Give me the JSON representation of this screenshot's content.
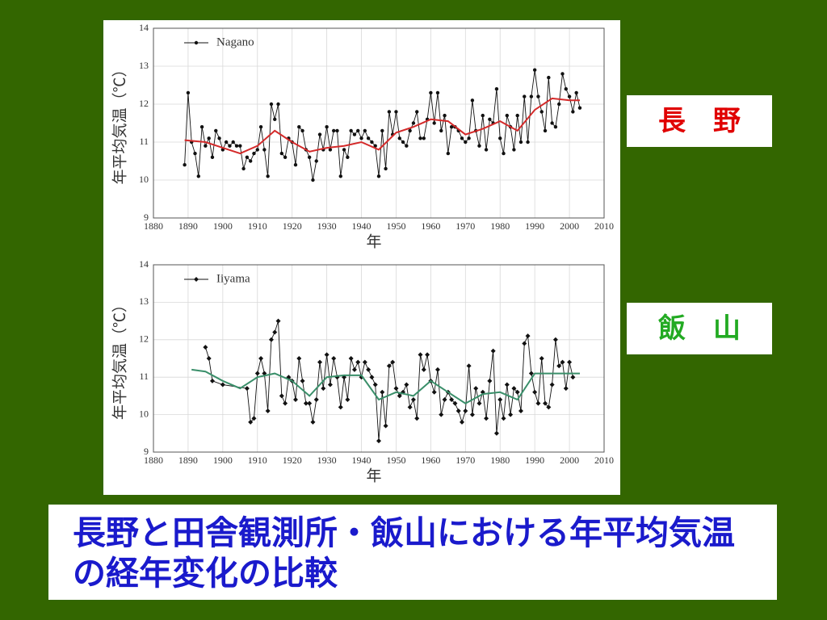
{
  "chart_data": [
    {
      "type": "line",
      "ylabel": "年平均気温（℃）",
      "xlabel": "年",
      "xlim": [
        1880,
        2010
      ],
      "ylim": [
        9,
        14
      ],
      "xticks": [
        1880,
        1890,
        1900,
        1910,
        1920,
        1930,
        1940,
        1950,
        1960,
        1970,
        1980,
        1990,
        2000,
        2010
      ],
      "yticks": [
        9,
        10,
        11,
        12,
        13,
        14
      ],
      "grid": true,
      "legend": "top-left",
      "series": [
        {
          "name": "Nagano",
          "color": "#111111",
          "marker": "circle",
          "x": [
            1889,
            1890,
            1891,
            1892,
            1893,
            1894,
            1895,
            1896,
            1897,
            1898,
            1899,
            1900,
            1901,
            1902,
            1903,
            1904,
            1905,
            1906,
            1907,
            1908,
            1909,
            1910,
            1911,
            1912,
            1913,
            1914,
            1915,
            1916,
            1917,
            1918,
            1919,
            1920,
            1921,
            1922,
            1923,
            1924,
            1925,
            1926,
            1927,
            1928,
            1929,
            1930,
            1931,
            1932,
            1933,
            1934,
            1935,
            1936,
            1937,
            1938,
            1939,
            1940,
            1941,
            1942,
            1943,
            1944,
            1945,
            1946,
            1947,
            1948,
            1949,
            1950,
            1951,
            1952,
            1953,
            1954,
            1955,
            1956,
            1957,
            1958,
            1959,
            1960,
            1961,
            1962,
            1963,
            1964,
            1965,
            1966,
            1967,
            1968,
            1969,
            1970,
            1971,
            1972,
            1973,
            1974,
            1975,
            1976,
            1977,
            1978,
            1979,
            1980,
            1981,
            1982,
            1983,
            1984,
            1985,
            1986,
            1987,
            1988,
            1989,
            1990,
            1991,
            1992,
            1993,
            1994,
            1995,
            1996,
            1997,
            1998,
            1999,
            2000,
            2001,
            2002,
            2003
          ],
          "values": [
            10.4,
            12.3,
            11.0,
            10.7,
            10.1,
            11.4,
            10.9,
            11.1,
            10.6,
            11.3,
            11.1,
            10.8,
            11.0,
            10.9,
            11.0,
            10.9,
            10.9,
            10.3,
            10.6,
            10.5,
            10.7,
            10.8,
            11.4,
            10.8,
            10.1,
            12.0,
            11.6,
            12.0,
            10.7,
            10.6,
            11.1,
            11.0,
            10.4,
            11.4,
            11.3,
            10.8,
            10.6,
            10.0,
            10.5,
            11.2,
            10.8,
            11.4,
            10.8,
            11.3,
            11.3,
            10.1,
            10.8,
            10.6,
            11.3,
            11.2,
            11.3,
            11.1,
            11.3,
            11.1,
            11.0,
            10.9,
            10.1,
            11.3,
            10.3,
            11.8,
            11.2,
            11.8,
            11.1,
            11.0,
            10.9,
            11.3,
            11.5,
            11.8,
            11.1,
            11.1,
            11.6,
            12.3,
            11.5,
            12.3,
            11.3,
            11.7,
            10.7,
            11.4,
            11.4,
            11.3,
            11.1,
            11.0,
            11.1,
            12.1,
            11.3,
            10.9,
            11.7,
            10.8,
            11.6,
            11.5,
            12.4,
            11.1,
            10.7,
            11.7,
            11.4,
            10.8,
            11.7,
            11.0,
            12.2,
            11.0,
            12.2,
            12.9,
            12.2,
            11.8,
            11.3,
            12.7,
            11.5,
            11.4,
            12.0,
            12.8,
            12.4,
            12.2,
            11.8,
            12.3,
            11.9
          ]
        },
        {
          "color": "#d42a2a",
          "x": [
            1889,
            1895,
            1900,
            1905,
            1910,
            1915,
            1920,
            1925,
            1930,
            1935,
            1940,
            1945,
            1950,
            1955,
            1960,
            1965,
            1970,
            1975,
            1980,
            1985,
            1990,
            1995,
            2000,
            2003
          ],
          "values": [
            11.05,
            11.0,
            10.85,
            10.7,
            10.9,
            11.3,
            11.0,
            10.75,
            10.85,
            10.9,
            11.0,
            10.8,
            11.25,
            11.4,
            11.6,
            11.55,
            11.2,
            11.35,
            11.55,
            11.3,
            11.85,
            12.15,
            12.1,
            12.1
          ]
        }
      ]
    },
    {
      "type": "line",
      "ylabel": "年平均気温（℃）",
      "xlabel": "年",
      "xlim": [
        1880,
        2010
      ],
      "ylim": [
        9,
        14
      ],
      "xticks": [
        1880,
        1890,
        1900,
        1910,
        1920,
        1930,
        1940,
        1950,
        1960,
        1970,
        1980,
        1990,
        2000,
        2010
      ],
      "yticks": [
        9,
        10,
        11,
        12,
        13,
        14
      ],
      "grid": true,
      "legend": "top-left",
      "series": [
        {
          "name": "Iiyama",
          "color": "#111111",
          "marker": "diamond",
          "x": [
            1895,
            1896,
            1897,
            1900,
            1907,
            1908,
            1909,
            1910,
            1911,
            1912,
            1913,
            1914,
            1915,
            1916,
            1917,
            1918,
            1919,
            1920,
            1921,
            1922,
            1923,
            1924,
            1925,
            1926,
            1927,
            1928,
            1929,
            1930,
            1931,
            1932,
            1933,
            1934,
            1935,
            1936,
            1937,
            1938,
            1939,
            1940,
            1941,
            1942,
            1943,
            1944,
            1945,
            1946,
            1947,
            1948,
            1949,
            1950,
            1951,
            1952,
            1953,
            1954,
            1955,
            1956,
            1957,
            1958,
            1959,
            1960,
            1961,
            1962,
            1963,
            1964,
            1965,
            1966,
            1967,
            1968,
            1969,
            1970,
            1971,
            1972,
            1973,
            1974,
            1975,
            1976,
            1977,
            1978,
            1979,
            1980,
            1981,
            1982,
            1983,
            1984,
            1985,
            1986,
            1987,
            1988,
            1989,
            1990,
            1991,
            1992,
            1993,
            1994,
            1995,
            1996,
            1997,
            1998,
            1999,
            2000,
            2001
          ],
          "values": [
            11.8,
            11.5,
            10.9,
            10.8,
            10.7,
            9.8,
            9.9,
            11.1,
            11.5,
            11.1,
            10.1,
            12.0,
            12.2,
            12.5,
            10.5,
            10.3,
            11.0,
            10.9,
            10.4,
            11.5,
            10.9,
            10.3,
            10.3,
            9.8,
            10.4,
            11.4,
            10.7,
            11.6,
            10.8,
            11.5,
            11.0,
            10.2,
            11.0,
            10.4,
            11.5,
            11.2,
            11.4,
            11.0,
            11.4,
            11.2,
            11.0,
            10.8,
            9.3,
            10.6,
            9.7,
            11.3,
            11.4,
            10.7,
            10.5,
            10.6,
            10.8,
            10.2,
            10.4,
            9.9,
            11.6,
            11.2,
            11.6,
            10.9,
            10.6,
            11.2,
            10.0,
            10.4,
            10.6,
            10.4,
            10.3,
            10.1,
            9.8,
            10.1,
            11.3,
            10.0,
            10.7,
            10.3,
            10.6,
            9.9,
            10.9,
            11.7,
            9.5,
            10.4,
            9.9,
            10.8,
            10.0,
            10.7,
            10.6,
            10.1,
            11.9,
            12.1,
            11.1,
            10.6,
            10.3,
            11.5,
            10.3,
            10.2,
            10.8,
            12.0,
            11.3,
            11.4,
            10.7,
            11.4,
            11.0
          ]
        },
        {
          "color": "#3a8f6a",
          "x": [
            1891,
            1895,
            1900,
            1905,
            1910,
            1915,
            1920,
            1925,
            1930,
            1935,
            1940,
            1945,
            1950,
            1955,
            1960,
            1965,
            1970,
            1975,
            1980,
            1985,
            1990,
            1995,
            2000,
            2003
          ],
          "values": [
            11.2,
            11.15,
            10.9,
            10.7,
            11.0,
            11.1,
            10.9,
            10.5,
            11.0,
            11.05,
            11.05,
            10.4,
            10.6,
            10.5,
            10.9,
            10.6,
            10.3,
            10.55,
            10.6,
            10.4,
            11.1,
            11.1,
            11.1,
            11.1
          ]
        }
      ]
    }
  ],
  "labels": [
    "長　野",
    "飯　山"
  ],
  "caption": "長野と田舎観測所・飯山における年平均気温の経年変化の比較"
}
